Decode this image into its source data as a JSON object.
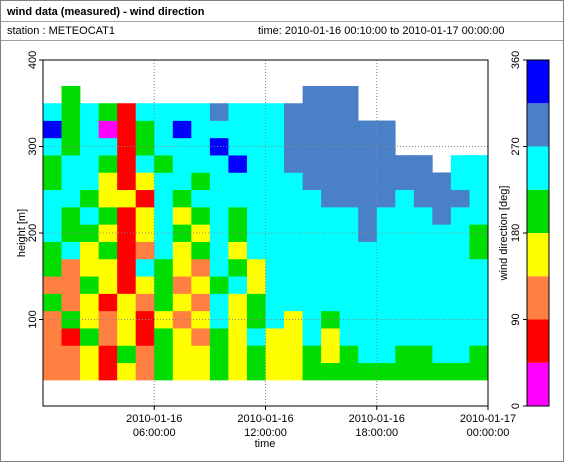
{
  "chart_data": {
    "type": "heatmap",
    "title": "wind data (measured) - wind direction",
    "station": "station : METEOCAT1",
    "period": "time: 2010-01-16 00:10:00 to 2010-01-17 00:00:00",
    "x_label": "time",
    "y_label": "height [m]",
    "xlim": [
      0,
      24
    ],
    "ylim": [
      0,
      400
    ],
    "xticks": [
      {
        "value": 6,
        "label": [
          "2010-01-16",
          "06:00:00"
        ]
      },
      {
        "value": 12,
        "label": [
          "2010-01-16",
          "12:00:00"
        ]
      },
      {
        "value": 18,
        "label": [
          "2010-01-16",
          "18:00:00"
        ]
      },
      {
        "value": 24,
        "label": [
          "2010-01-17",
          "00:00:00"
        ]
      }
    ],
    "yticks": [
      100,
      200,
      300,
      400
    ],
    "grid": true,
    "x_edges": [
      0,
      1,
      2,
      3,
      4,
      5,
      6,
      7,
      8,
      9,
      10,
      11,
      12,
      13,
      14,
      15,
      16,
      17,
      18,
      19,
      20,
      21,
      22,
      23,
      24
    ],
    "y_edges": [
      30,
      50,
      70,
      90,
      110,
      130,
      150,
      170,
      190,
      210,
      230,
      250,
      270,
      290,
      310,
      330,
      350,
      370
    ],
    "values": [
      [
        110,
        110,
        160,
        70,
        160,
        110,
        200,
        160,
        160,
        200,
        160,
        200,
        160,
        160,
        200,
        200,
        200,
        200,
        200,
        200,
        200,
        200,
        200,
        200
      ],
      [
        110,
        110,
        160,
        70,
        200,
        110,
        200,
        160,
        160,
        200,
        160,
        200,
        160,
        160,
        200,
        160,
        200,
        250,
        250,
        200,
        200,
        250,
        250,
        200
      ],
      [
        110,
        70,
        200,
        110,
        160,
        70,
        200,
        160,
        110,
        200,
        160,
        250,
        160,
        160,
        250,
        160,
        250,
        250,
        250,
        250,
        250,
        250,
        250,
        250
      ],
      [
        110,
        200,
        160,
        110,
        160,
        70,
        160,
        110,
        160,
        250,
        160,
        200,
        250,
        160,
        250,
        200,
        250,
        250,
        250,
        250,
        250,
        250,
        250,
        250
      ],
      [
        200,
        110,
        160,
        70,
        160,
        110,
        200,
        160,
        110,
        250,
        160,
        200,
        250,
        250,
        250,
        250,
        250,
        250,
        250,
        250,
        250,
        250,
        250,
        250
      ],
      [
        110,
        110,
        200,
        160,
        70,
        160,
        200,
        110,
        160,
        200,
        250,
        160,
        250,
        250,
        250,
        250,
        250,
        250,
        250,
        250,
        250,
        250,
        250,
        250
      ],
      [
        200,
        110,
        160,
        160,
        70,
        250,
        200,
        160,
        110,
        250,
        200,
        160,
        250,
        250,
        250,
        250,
        250,
        250,
        250,
        250,
        250,
        250,
        250,
        250
      ],
      [
        200,
        250,
        160,
        200,
        70,
        110,
        250,
        160,
        200,
        250,
        160,
        250,
        250,
        250,
        250,
        250,
        250,
        250,
        250,
        250,
        250,
        250,
        250,
        200
      ],
      [
        250,
        200,
        200,
        160,
        70,
        160,
        250,
        200,
        160,
        250,
        200,
        250,
        250,
        250,
        250,
        250,
        250,
        290,
        250,
        250,
        250,
        250,
        250,
        200
      ],
      [
        250,
        200,
        250,
        200,
        70,
        160,
        250,
        160,
        200,
        250,
        200,
        250,
        250,
        250,
        250,
        250,
        250,
        290,
        250,
        250,
        250,
        290,
        250,
        250
      ],
      [
        250,
        250,
        200,
        160,
        160,
        70,
        250,
        200,
        250,
        250,
        250,
        250,
        250,
        250,
        250,
        290,
        290,
        290,
        290,
        250,
        290,
        290,
        290,
        250
      ],
      [
        200,
        250,
        250,
        160,
        70,
        160,
        250,
        250,
        200,
        250,
        250,
        250,
        250,
        250,
        290,
        290,
        290,
        290,
        290,
        290,
        290,
        290,
        250,
        250
      ],
      [
        200,
        250,
        250,
        200,
        70,
        250,
        200,
        250,
        250,
        250,
        330,
        250,
        250,
        290,
        290,
        290,
        290,
        290,
        290,
        290,
        290,
        null,
        250,
        250
      ],
      [
        250,
        200,
        250,
        250,
        70,
        200,
        250,
        250,
        250,
        330,
        250,
        250,
        250,
        290,
        290,
        290,
        290,
        290,
        290,
        null,
        null,
        null,
        null,
        null
      ],
      [
        330,
        200,
        250,
        20,
        70,
        200,
        250,
        330,
        250,
        250,
        250,
        250,
        250,
        290,
        290,
        290,
        290,
        290,
        290,
        null,
        null,
        null,
        null,
        null
      ],
      [
        250,
        200,
        250,
        200,
        70,
        250,
        250,
        250,
        250,
        290,
        250,
        250,
        250,
        290,
        290,
        290,
        290,
        null,
        null,
        null,
        null,
        null,
        null,
        null
      ],
      [
        null,
        200,
        null,
        null,
        null,
        null,
        null,
        null,
        null,
        null,
        null,
        null,
        null,
        null,
        290,
        290,
        290,
        null,
        null,
        null,
        null,
        null,
        null,
        null
      ]
    ],
    "colorbar": {
      "label": "wind direction [deg]",
      "bounds": [
        0,
        45,
        90,
        135,
        180,
        225,
        270,
        315,
        360
      ],
      "colors": [
        "#ff00ff",
        "#ff0000",
        "#ff8040",
        "#ffff00",
        "#00dd00",
        "#00ffff",
        "#4a80c8",
        "#0000ff"
      ],
      "ticks": [
        0,
        90,
        180,
        270,
        360
      ]
    }
  }
}
